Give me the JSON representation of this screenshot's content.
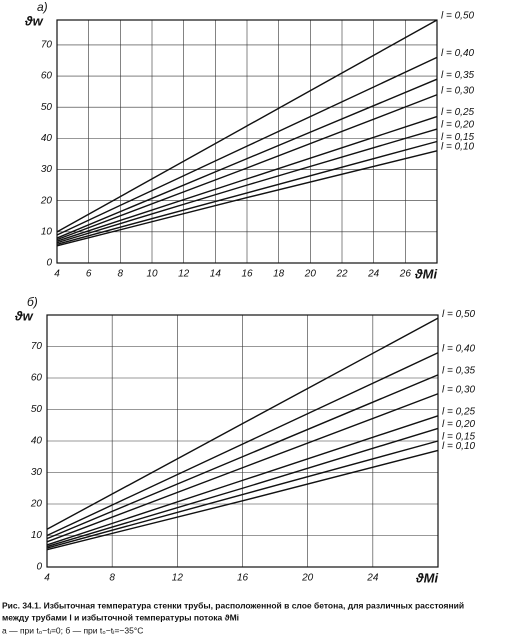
{
  "chart_data": [
    {
      "type": "line",
      "panel": "а)",
      "ylabel": "ϑw",
      "xlabel": "ϑMi",
      "x": [
        4,
        16,
        28
      ],
      "xlim": [
        4,
        28
      ],
      "ylim": [
        0,
        78
      ],
      "xticks": [
        4,
        6,
        8,
        10,
        12,
        14,
        16,
        18,
        20,
        22,
        24,
        26
      ],
      "yticks": [
        0,
        10,
        20,
        30,
        40,
        50,
        60,
        70
      ],
      "grid": true,
      "series": [
        {
          "name": "l = 0,50",
          "color": "#111111",
          "values": [
            10,
            44,
            78
          ]
        },
        {
          "name": "l = 0,40",
          "color": "#111111",
          "values": [
            9,
            37.5,
            66
          ]
        },
        {
          "name": "l = 0,35",
          "color": "#111111",
          "values": [
            8,
            33.5,
            59
          ]
        },
        {
          "name": "l = 0,30",
          "color": "#111111",
          "values": [
            7.5,
            30.5,
            54
          ]
        },
        {
          "name": "l = 0,25",
          "color": "#111111",
          "values": [
            7,
            27,
            47
          ]
        },
        {
          "name": "l = 0,20",
          "color": "#111111",
          "values": [
            6.5,
            25,
            43
          ]
        },
        {
          "name": "l = 0,15",
          "color": "#111111",
          "values": [
            6,
            22.5,
            39
          ]
        },
        {
          "name": "l = 0,10",
          "color": "#111111",
          "values": [
            5.5,
            21,
            36
          ]
        }
      ]
    },
    {
      "type": "line",
      "panel": "б)",
      "ylabel": "ϑw",
      "xlabel": "ϑMi",
      "x": [
        4,
        16,
        28
      ],
      "xlim": [
        4,
        28
      ],
      "ylim": [
        0,
        80
      ],
      "xticks": [
        4,
        8,
        12,
        16,
        20,
        24
      ],
      "yticks": [
        0,
        10,
        20,
        30,
        40,
        50,
        60,
        70
      ],
      "grid": true,
      "series": [
        {
          "name": "l = 0,50",
          "color": "#111111",
          "values": [
            12,
            45.5,
            79
          ]
        },
        {
          "name": "l = 0,40",
          "color": "#111111",
          "values": [
            10,
            39,
            68
          ]
        },
        {
          "name": "l = 0,35",
          "color": "#111111",
          "values": [
            9,
            35,
            61
          ]
        },
        {
          "name": "l = 0,30",
          "color": "#111111",
          "values": [
            8,
            31.5,
            55
          ]
        },
        {
          "name": "l = 0,25",
          "color": "#111111",
          "values": [
            7,
            27.5,
            48
          ]
        },
        {
          "name": "l = 0,20",
          "color": "#111111",
          "values": [
            6.5,
            25,
            44
          ]
        },
        {
          "name": "l = 0,15",
          "color": "#111111",
          "values": [
            6,
            23,
            40
          ]
        },
        {
          "name": "l = 0,10",
          "color": "#111111",
          "values": [
            5.5,
            21,
            37
          ]
        }
      ]
    }
  ],
  "caption": [
    "Рис. 34.1. Избыточная температура стенки трубы, расположенной в слое бетона, для различных расстояний",
    "между трубами l и избыточной температуры потока ϑMi",
    "а — при t₀−tᵢ=0; б — при t₀−tᵢ=−35°C"
  ]
}
